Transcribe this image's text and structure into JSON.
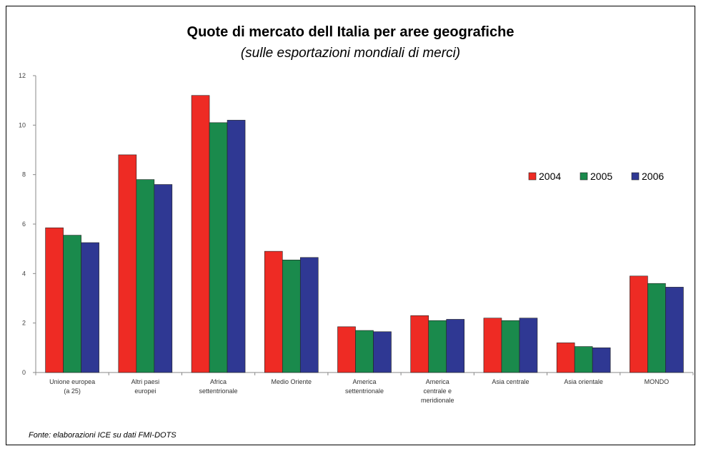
{
  "chart_data": {
    "type": "bar",
    "title": "Quote di mercato dell Italia per aree geografiche",
    "subtitle": "(sulle esportazioni mondiali di merci)",
    "categories": [
      [
        "Unione europea",
        "(a 25)"
      ],
      [
        "Altri paesi",
        "europei"
      ],
      [
        "Africa",
        "settentrionale"
      ],
      [
        "Medio Oriente"
      ],
      [
        "America",
        "settentrionale"
      ],
      [
        "America",
        "centrale e",
        "meridionale"
      ],
      [
        "Asia centrale"
      ],
      [
        "Asia orientale"
      ],
      [
        "MONDO"
      ]
    ],
    "series": [
      {
        "name": "2004",
        "color": "#ee2b24",
        "values": [
          5.85,
          8.8,
          11.2,
          4.9,
          1.85,
          2.3,
          2.2,
          1.2,
          3.9
        ]
      },
      {
        "name": "2005",
        "color": "#1a8a4c",
        "values": [
          5.55,
          7.8,
          10.1,
          4.55,
          1.7,
          2.1,
          2.1,
          1.05,
          3.6
        ]
      },
      {
        "name": "2006",
        "color": "#2f3893",
        "values": [
          5.25,
          7.6,
          10.2,
          4.65,
          1.65,
          2.15,
          2.2,
          1.0,
          3.45
        ]
      }
    ],
    "ylim": [
      0,
      12
    ],
    "yticks": [
      0,
      2,
      4,
      6,
      8,
      10,
      12
    ],
    "grid": false,
    "legend_position": "right"
  },
  "source_note": "Fonte: elaborazioni ICE su dati FMI-DOTS"
}
